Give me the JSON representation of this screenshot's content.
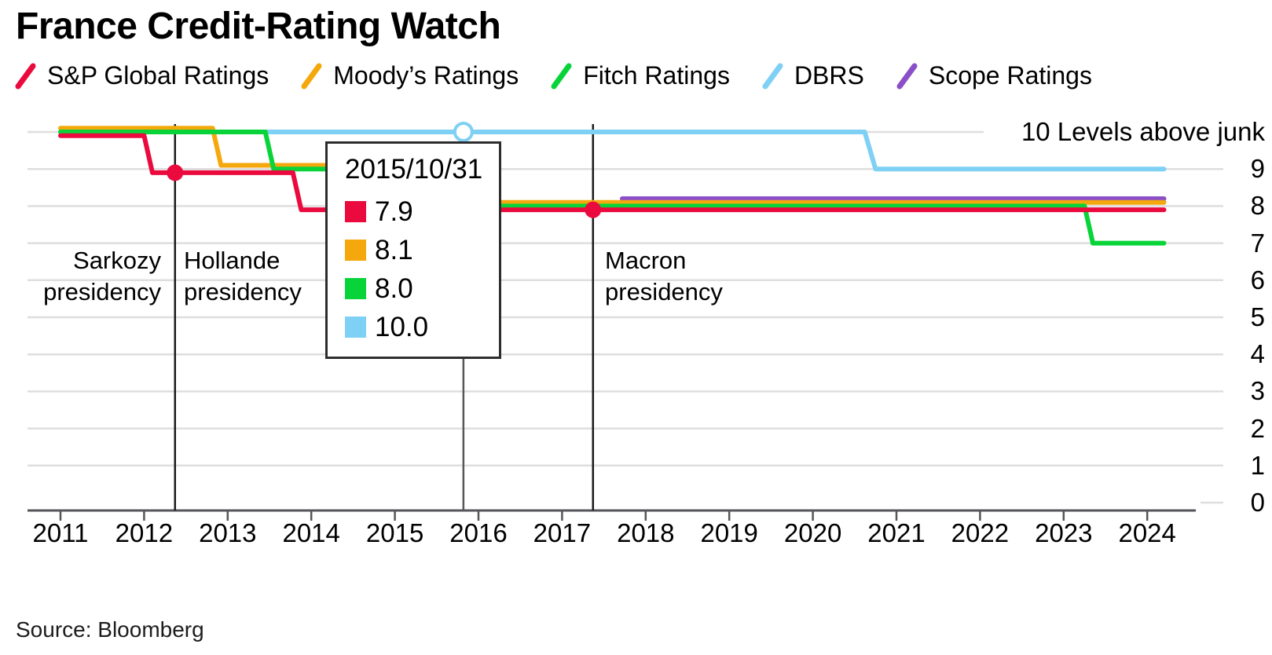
{
  "title": "France Credit-Rating Watch",
  "source": "Source: Bloomberg",
  "legend": {
    "items": [
      {
        "label": "S&P Global Ratings",
        "color": "#ea0a3e"
      },
      {
        "label": "Moody’s Ratings",
        "color": "#f5a80c"
      },
      {
        "label": "Fitch Ratings",
        "color": "#08d43a"
      },
      {
        "label": "DBRS",
        "color": "#7ed0f4"
      },
      {
        "label": "Scope Ratings",
        "color": "#8a4fc8"
      }
    ]
  },
  "annotations": {
    "sarkozy": "Sarkozy\npresidency",
    "hollande": "Hollande\npresidency",
    "macron": "Macron\npresidency"
  },
  "tooltip": {
    "date": "2015/10/31",
    "rows": [
      {
        "series": "S&P Global Ratings",
        "color": "#ea0a3e",
        "value": "7.9"
      },
      {
        "series": "Moody’s Ratings",
        "color": "#f5a80c",
        "value": "8.1"
      },
      {
        "series": "Fitch Ratings",
        "color": "#08d43a",
        "value": "8.0"
      },
      {
        "series": "DBRS",
        "color": "#7ed0f4",
        "value": "10.0"
      }
    ]
  },
  "chart_data": {
    "type": "line",
    "title": "France Credit-Rating Watch",
    "ylabel": "Levels above junk",
    "grid": true,
    "legend_position": "top",
    "x_axis": {
      "ticks": [
        2011,
        2012,
        2013,
        2014,
        2015,
        2016,
        2017,
        2018,
        2019,
        2020,
        2021,
        2022,
        2023,
        2024
      ],
      "range": [
        2010.6,
        2024.35
      ]
    },
    "y_axis": {
      "range": [
        0,
        10
      ],
      "ticks": [
        {
          "level": 10,
          "label": "10 Levels above junk"
        },
        {
          "level": 9,
          "label": "9"
        },
        {
          "level": 8,
          "label": "8"
        },
        {
          "level": 7,
          "label": "7"
        },
        {
          "level": 6,
          "label": "6"
        },
        {
          "level": 5,
          "label": "5"
        },
        {
          "level": 4,
          "label": "4"
        },
        {
          "level": 3,
          "label": "3"
        },
        {
          "level": 2,
          "label": "2"
        },
        {
          "level": 1,
          "label": "1"
        },
        {
          "level": 0,
          "label": "0"
        }
      ]
    },
    "series": [
      {
        "name": "S&P Global Ratings",
        "color": "#ea0a3e",
        "z": 5,
        "points": [
          [
            2011,
            9.9
          ],
          [
            2012.0,
            9.9
          ],
          [
            2012.1,
            8.9
          ],
          [
            2013.78,
            8.9
          ],
          [
            2013.88,
            7.9
          ],
          [
            2024.2,
            7.9
          ]
        ]
      },
      {
        "name": "Moody’s Ratings",
        "color": "#f5a80c",
        "z": 3,
        "points": [
          [
            2011,
            10.1
          ],
          [
            2012.82,
            10.1
          ],
          [
            2012.92,
            9.1
          ],
          [
            2015.65,
            9.1
          ],
          [
            2015.75,
            8.1
          ],
          [
            2024.2,
            8.1
          ]
        ]
      },
      {
        "name": "Fitch Ratings",
        "color": "#08d43a",
        "z": 4,
        "points": [
          [
            2011,
            10.0
          ],
          [
            2013.45,
            10.0
          ],
          [
            2013.55,
            9.0
          ],
          [
            2014.9,
            9.0
          ],
          [
            2015.0,
            8.0
          ],
          [
            2023.25,
            8.0
          ],
          [
            2023.35,
            7.0
          ],
          [
            2024.2,
            7.0
          ]
        ]
      },
      {
        "name": "DBRS",
        "color": "#7ed0f4",
        "z": 1,
        "points": [
          [
            2011,
            10.0
          ],
          [
            2020.62,
            10.0
          ],
          [
            2020.75,
            9.0
          ],
          [
            2024.2,
            9.0
          ]
        ]
      },
      {
        "name": "Scope Ratings",
        "color": "#8a4fc8",
        "z": 2,
        "points": [
          [
            2017.72,
            8.2
          ],
          [
            2024.2,
            8.2
          ]
        ]
      }
    ],
    "markers": [
      {
        "type": "dot",
        "x": 2012.37,
        "y": 8.9,
        "color": "#ea0a3e"
      },
      {
        "type": "dot",
        "x": 2017.37,
        "y": 7.9,
        "color": "#ea0a3e"
      },
      {
        "type": "open-circle",
        "x": 2015.82,
        "y": 10.0,
        "color": "#7ed0f4"
      }
    ],
    "event_lines": [
      2012.37,
      2017.37
    ],
    "crosshair_x": 2015.82,
    "colors": {
      "grid": "#dedede",
      "axis": "#55565a",
      "event_line": "#1b1b1b",
      "crosshair": "#58585b",
      "tooltip_border": "#2d2d2d",
      "text": "#000000"
    }
  }
}
